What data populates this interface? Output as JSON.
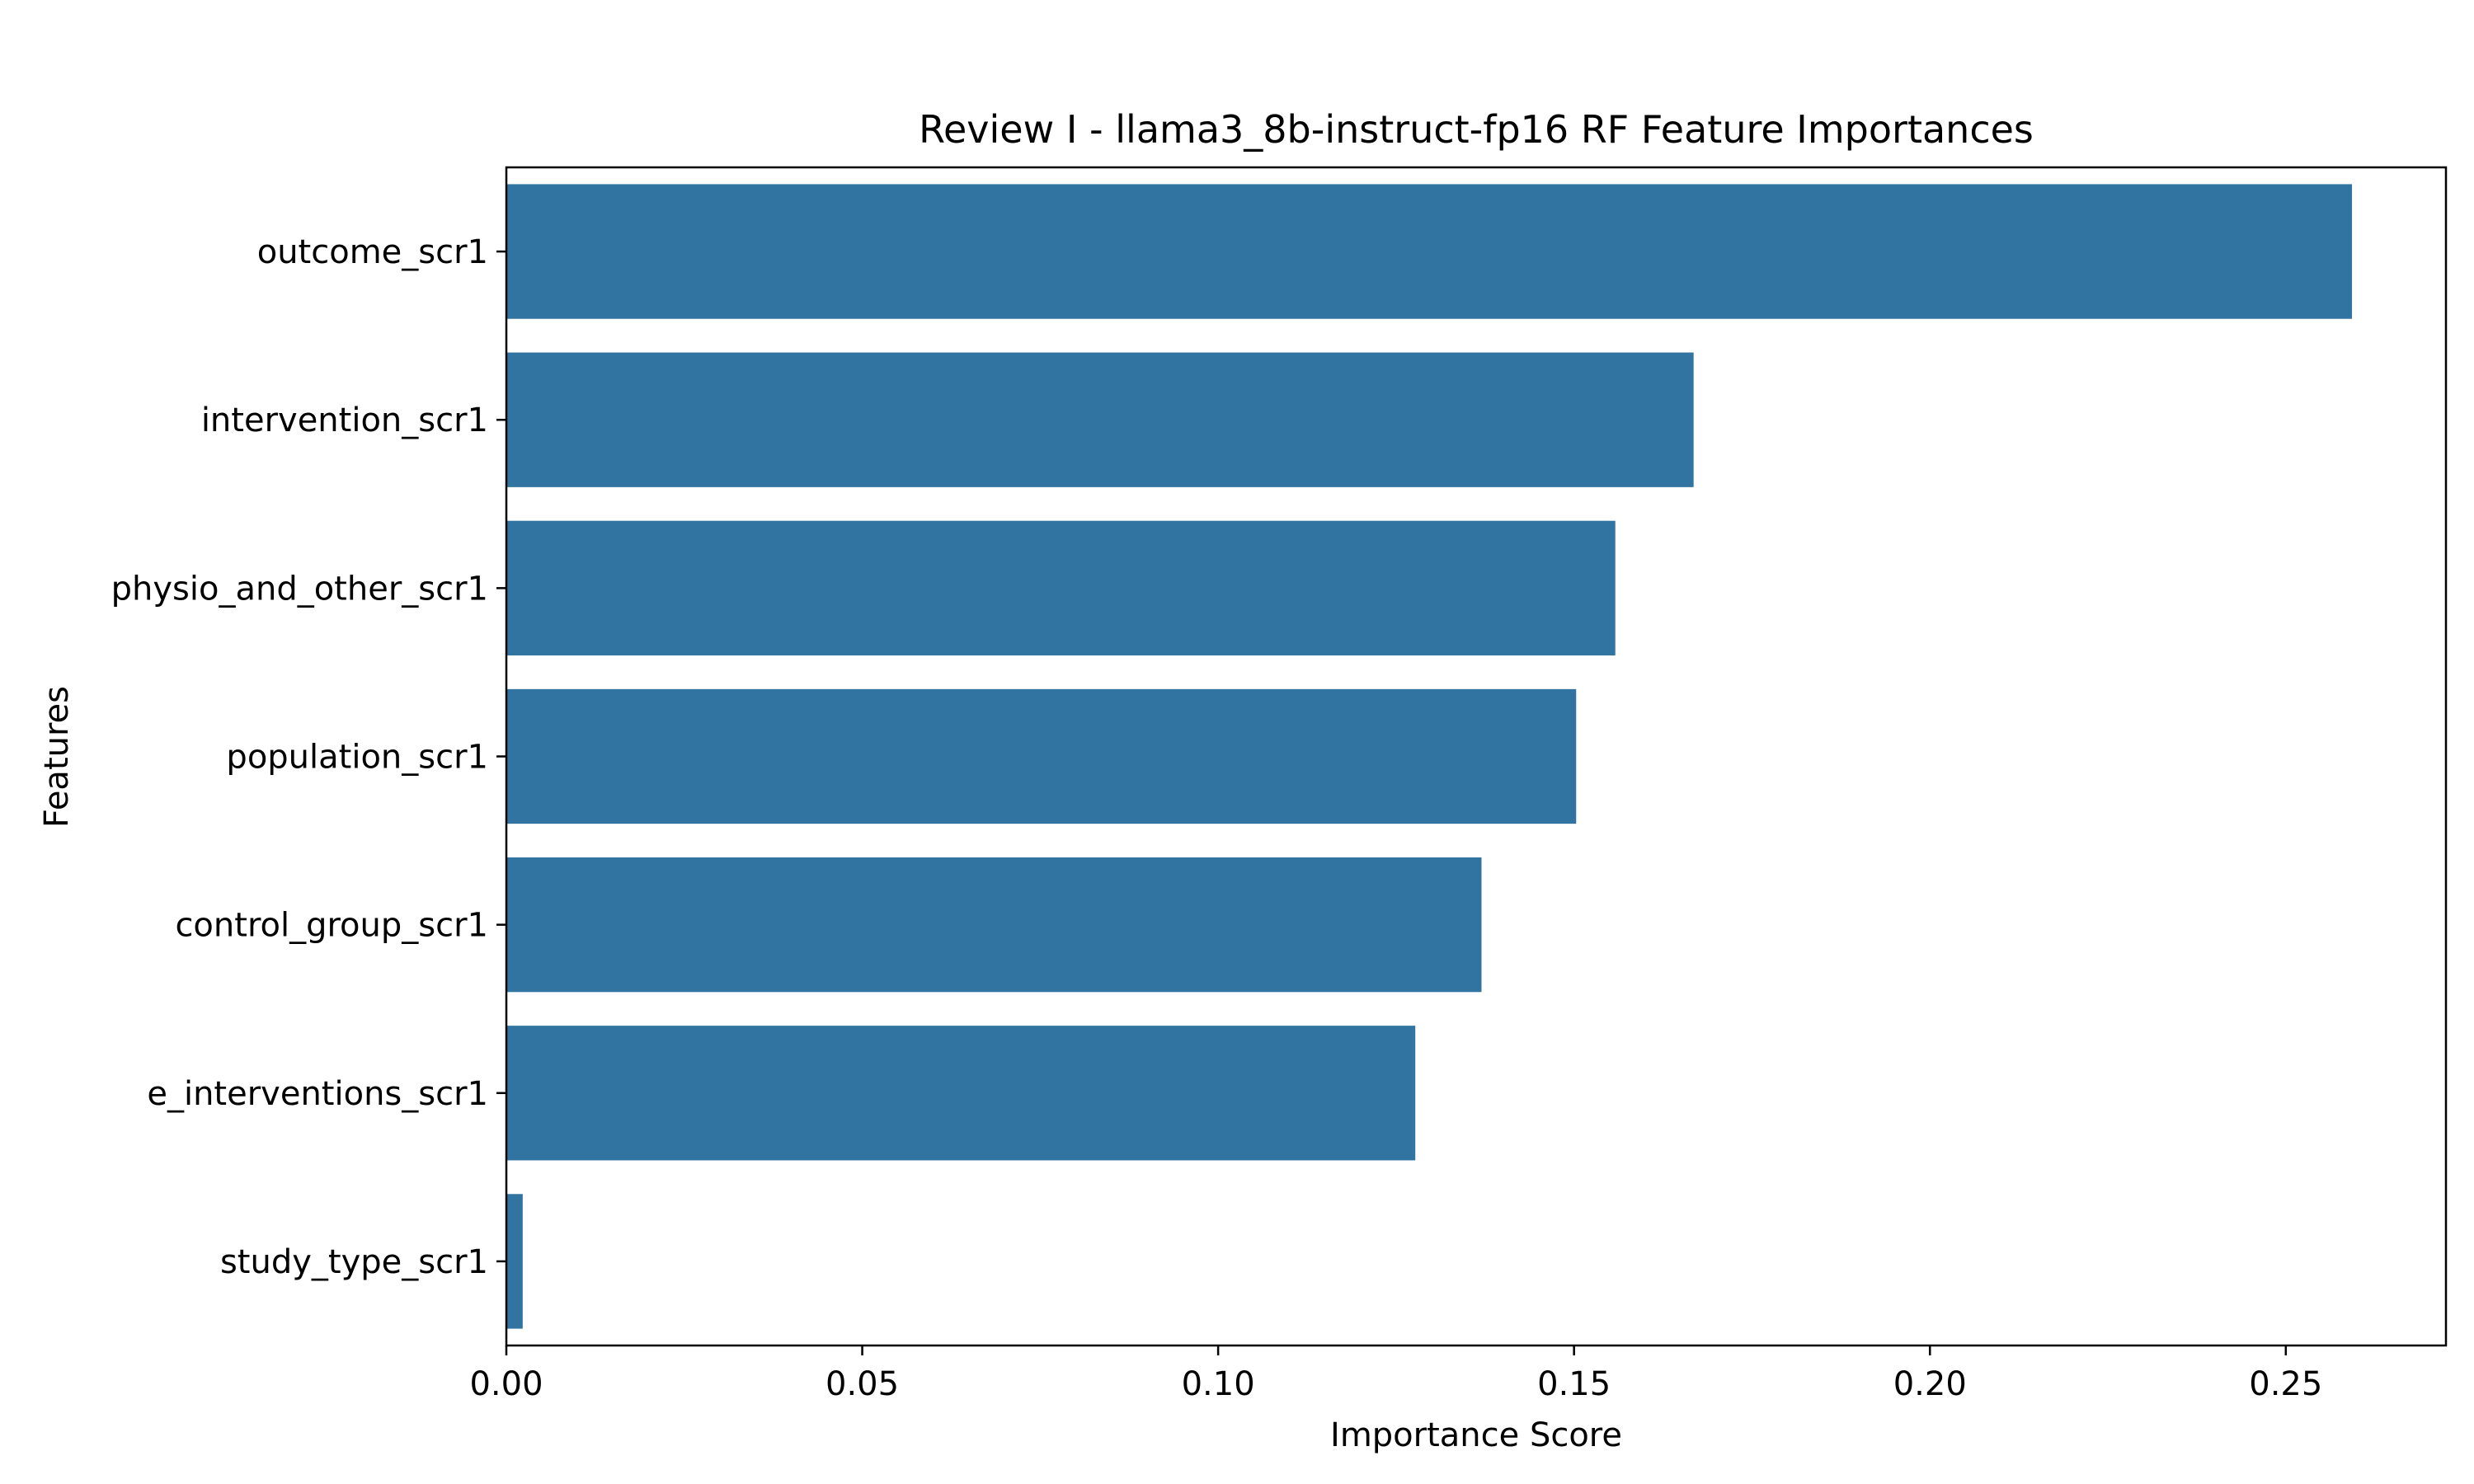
{
  "chart_data": {
    "type": "bar",
    "orientation": "horizontal",
    "title": "Review I - llama3_8b-instruct-fp16 RF Feature Importances",
    "xlabel": "Importance Score",
    "ylabel": "Features",
    "categories": [
      "outcome_scr1",
      "intervention_scr1",
      "physio_and_other_scr1",
      "population_scr1",
      "control_group_scr1",
      "e_interventions_scr1",
      "study_type_scr1"
    ],
    "values": [
      0.2593,
      0.1668,
      0.1558,
      0.1503,
      0.137,
      0.1277,
      0.0023
    ],
    "xlim": [
      0,
      0.2725
    ],
    "xticks": [
      "0.00",
      "0.05",
      "0.10",
      "0.15",
      "0.20",
      "0.25"
    ],
    "bar_color": "#3274a1",
    "grid": false,
    "legend": "none"
  }
}
